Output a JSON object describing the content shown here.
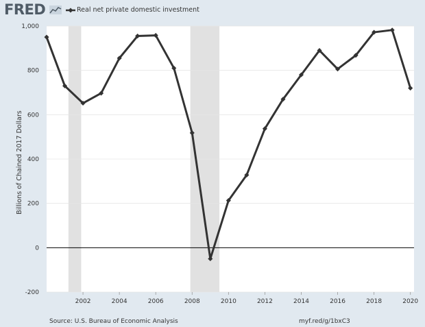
{
  "header": {
    "logo_text": "FRED",
    "logo_icon": "line-chart-icon",
    "legend_label": "Real net private domestic investment"
  },
  "footer": {
    "source": "Source: U.S. Bureau of Economic Analysis",
    "shortlink": "myf.red/g/1bxC3"
  },
  "colors": {
    "background": "#e1e9f0",
    "plot_background": "#ffffff",
    "series": "#333333",
    "recession": "#e1e1e1",
    "logo": "#4f5b66"
  },
  "chart_data": {
    "type": "line",
    "title": "",
    "xlabel": "",
    "ylabel": "Billions of Chained 2017 Dollars",
    "xlim": [
      2000,
      2020.2
    ],
    "ylim": [
      -200,
      1000
    ],
    "xticks": [
      2002,
      2004,
      2006,
      2008,
      2010,
      2012,
      2014,
      2016,
      2018,
      2020
    ],
    "yticks": [
      -200,
      0,
      200,
      400,
      600,
      800,
      1000
    ],
    "ytick_labels": [
      "-200",
      "0",
      "200",
      "400",
      "600",
      "800",
      "1,000"
    ],
    "grid": true,
    "legend_position": "top-left",
    "recessions": [
      [
        2001.2,
        2001.9
      ],
      [
        2007.9,
        2009.5
      ]
    ],
    "series": [
      {
        "name": "Real net private domestic investment",
        "x": [
          2000,
          2001,
          2002,
          2003,
          2004,
          2005,
          2006,
          2007,
          2008,
          2009,
          2010,
          2011,
          2012,
          2013,
          2014,
          2015,
          2016,
          2017,
          2018,
          2019,
          2020
        ],
        "values": [
          950,
          730,
          652,
          697,
          855,
          955,
          958,
          810,
          518,
          -50,
          213,
          328,
          537,
          670,
          780,
          890,
          806,
          868,
          972,
          982,
          720
        ]
      }
    ]
  }
}
